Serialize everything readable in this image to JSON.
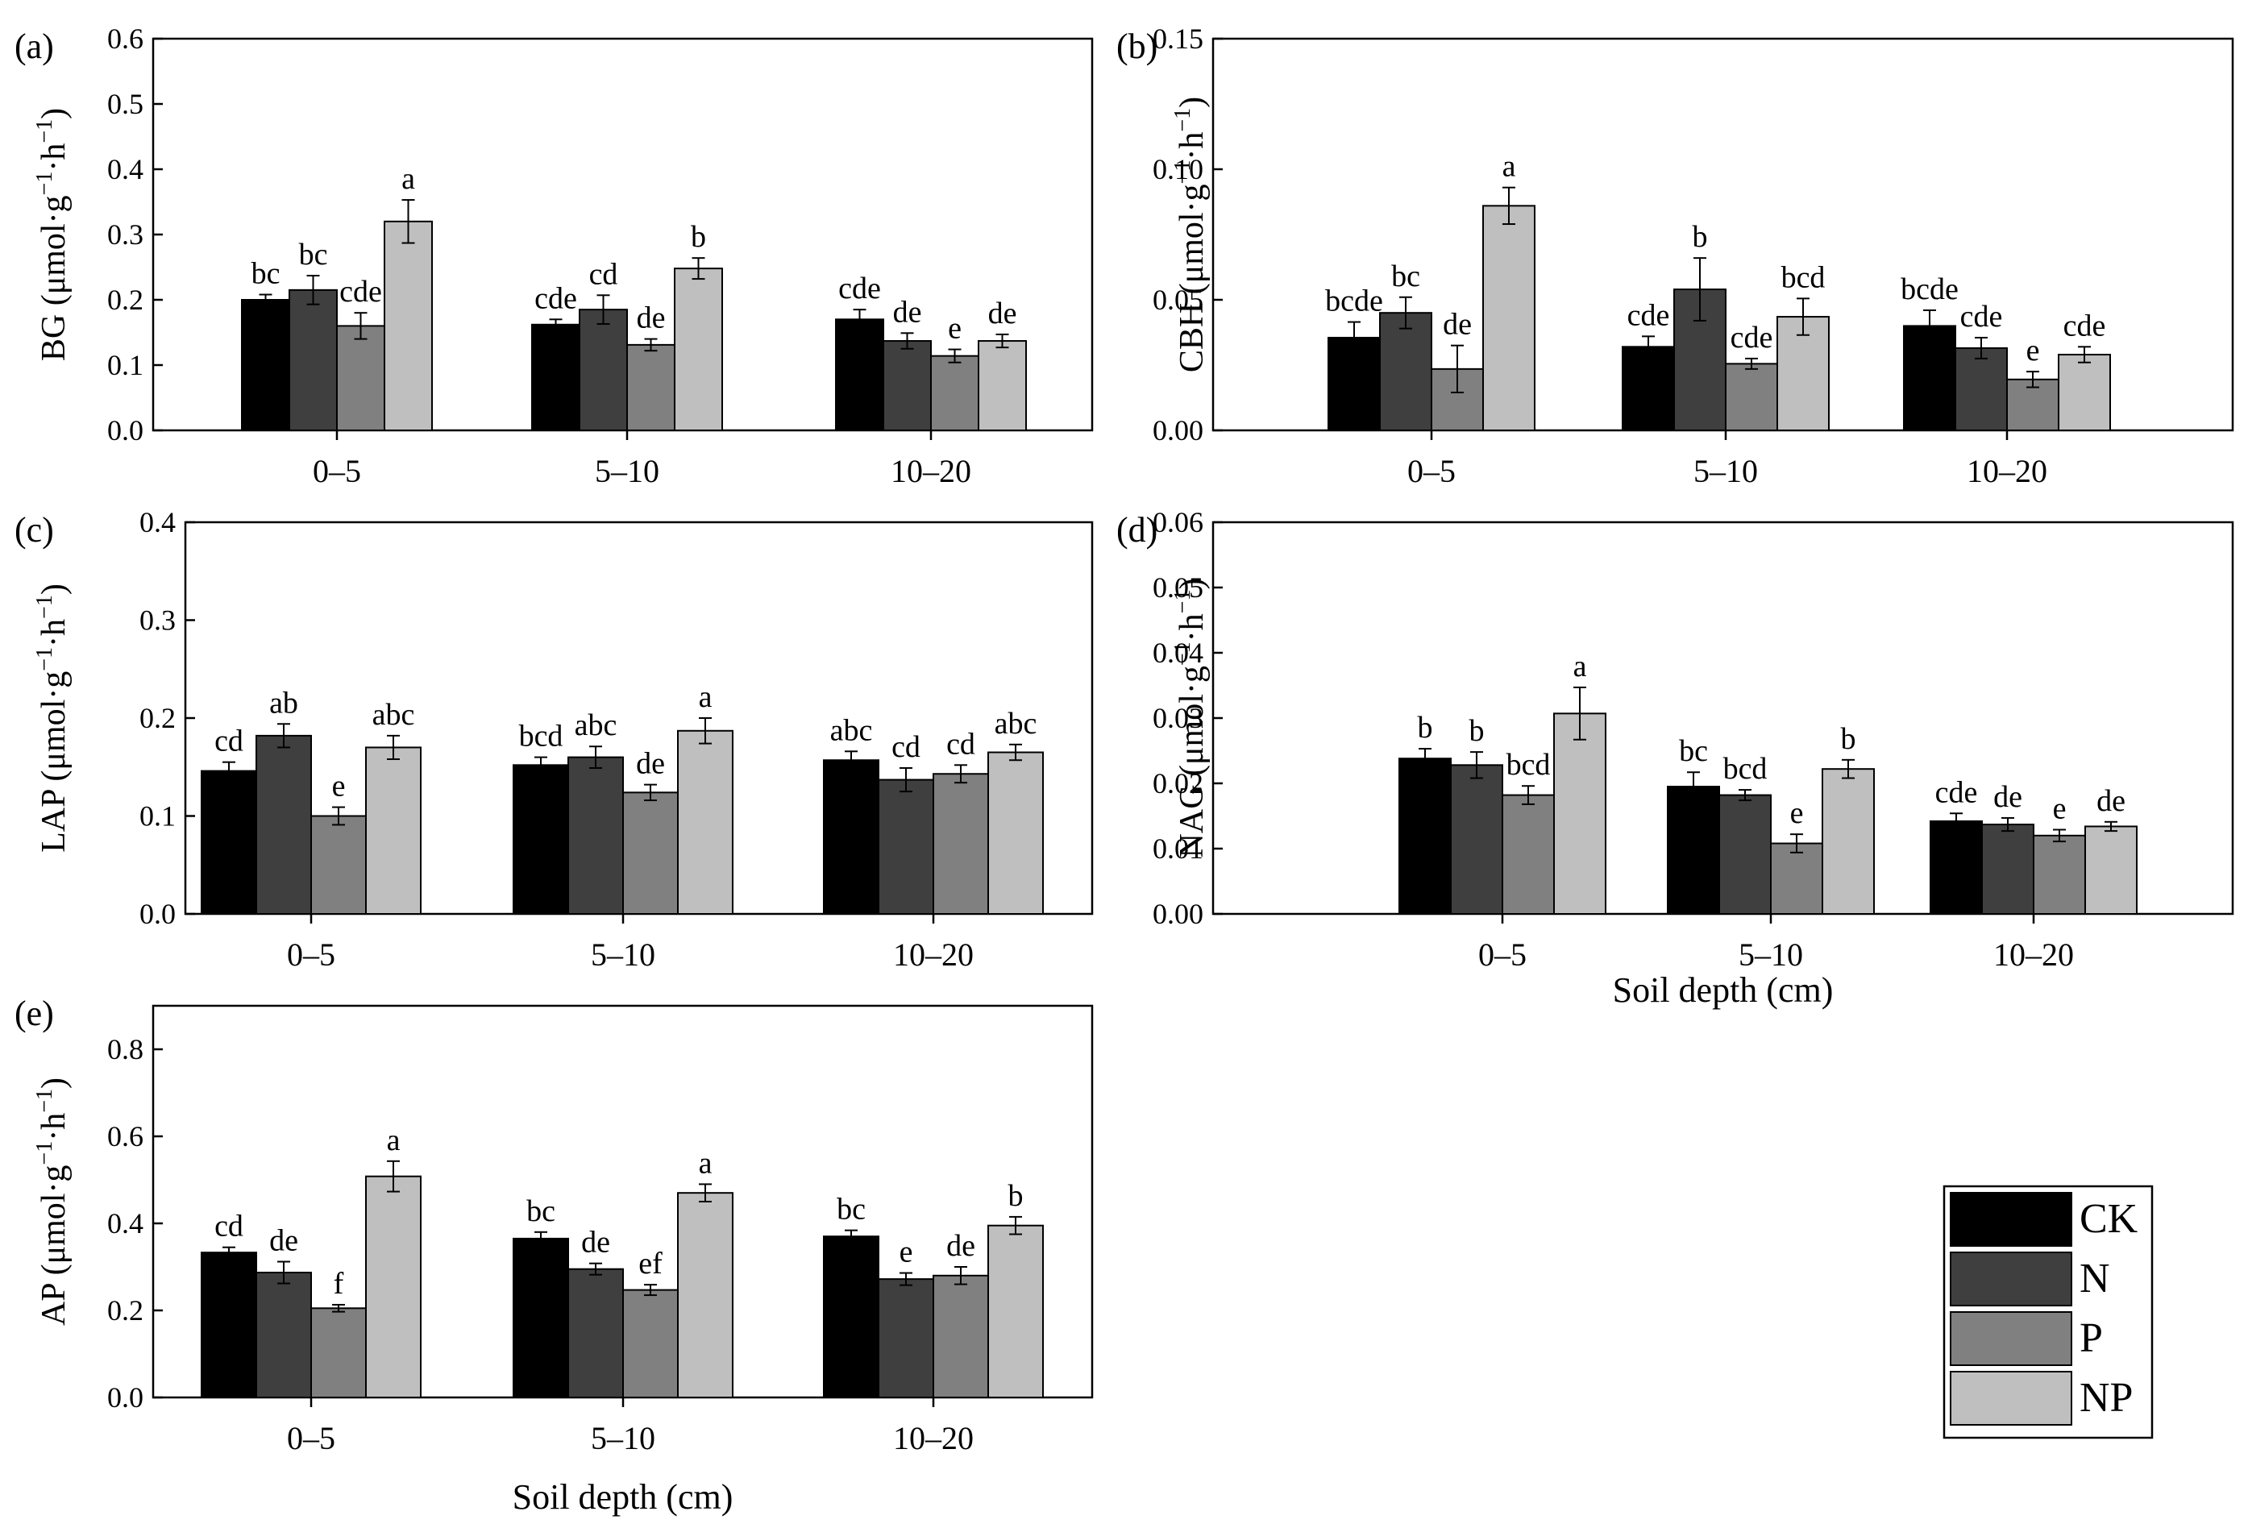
{
  "series_names": [
    "CK",
    "N",
    "P",
    "NP"
  ],
  "series_colors": [
    "#000000",
    "#3f3f3f",
    "#808080",
    "#bfbfbf"
  ],
  "legend": {
    "items": [
      "CK",
      "N",
      "P",
      "NP"
    ]
  },
  "chart_data": [
    {
      "type": "bar",
      "panel": "(a)",
      "ylabel_main": "BG (μmol·g",
      "ylabel_sep": "·h",
      "ylabel_unit_close": ")",
      "ylabel_exp": "−1",
      "xlabel": "",
      "categories": [
        "0–5",
        "5–10",
        "10–20"
      ],
      "ylim": [
        0,
        0.6
      ],
      "yticks": [
        0.0,
        0.1,
        0.2,
        0.3,
        0.4,
        0.5,
        0.6
      ],
      "ytick_labels": [
        "0.0",
        "0.1",
        "0.2",
        "0.3",
        "0.4",
        "0.5",
        "0.6"
      ],
      "series": [
        {
          "name": "CK",
          "values": [
            0.2,
            0.162,
            0.17
          ],
          "errors": [
            0.008,
            0.008,
            0.015
          ],
          "letters": [
            "bc",
            "cde",
            "cde"
          ]
        },
        {
          "name": "N",
          "values": [
            0.215,
            0.185,
            0.137
          ],
          "errors": [
            0.022,
            0.022,
            0.012
          ],
          "letters": [
            "bc",
            "cd",
            "de"
          ]
        },
        {
          "name": "P",
          "values": [
            0.16,
            0.131,
            0.114
          ],
          "errors": [
            0.02,
            0.009,
            0.01
          ],
          "letters": [
            "cde",
            "de",
            "e"
          ]
        },
        {
          "name": "NP",
          "values": [
            0.32,
            0.248,
            0.137
          ],
          "errors": [
            0.033,
            0.016,
            0.01
          ],
          "letters": [
            "a",
            "b",
            "de"
          ]
        }
      ]
    },
    {
      "type": "bar",
      "panel": "(b)",
      "ylabel_main": "CBH (μmol·g",
      "ylabel_sep": "·h",
      "ylabel_unit_close": ")",
      "ylabel_exp": "−1",
      "xlabel": "",
      "categories": [
        "0–5",
        "5–10",
        "10–20"
      ],
      "ylim": [
        0,
        0.15
      ],
      "yticks": [
        0.0,
        0.05,
        0.1,
        0.15
      ],
      "ytick_labels": [
        "0.00",
        "0.05",
        "0.10",
        "0.15"
      ],
      "series": [
        {
          "name": "CK",
          "values": [
            0.0355,
            0.032,
            0.04
          ],
          "errors": [
            0.006,
            0.004,
            0.006
          ],
          "letters": [
            "bcde",
            "cde",
            "bcde"
          ]
        },
        {
          "name": "N",
          "values": [
            0.045,
            0.054,
            0.0315
          ],
          "errors": [
            0.006,
            0.012,
            0.004
          ],
          "letters": [
            "bc",
            "b",
            "cde"
          ]
        },
        {
          "name": "P",
          "values": [
            0.0235,
            0.0255,
            0.0195
          ],
          "errors": [
            0.009,
            0.002,
            0.003
          ],
          "letters": [
            "de",
            "cde",
            "e"
          ]
        },
        {
          "name": "NP",
          "values": [
            0.086,
            0.0435,
            0.029
          ],
          "errors": [
            0.007,
            0.007,
            0.003
          ],
          "letters": [
            "a",
            "bcd",
            "cde"
          ]
        }
      ]
    },
    {
      "type": "bar",
      "panel": "(c)",
      "ylabel_main": "LAP (μmol·g",
      "ylabel_sep": "·h",
      "ylabel_unit_close": ")",
      "ylabel_exp": "−1",
      "xlabel": "",
      "categories": [
        "0–5",
        "5–10",
        "10–20"
      ],
      "ylim": [
        0,
        0.4
      ],
      "yticks": [
        0.0,
        0.1,
        0.2,
        0.3,
        0.4
      ],
      "ytick_labels": [
        "0.0",
        "0.1",
        "0.2",
        "0.3",
        "0.4"
      ],
      "series": [
        {
          "name": "CK",
          "values": [
            0.146,
            0.152,
            0.157
          ],
          "errors": [
            0.009,
            0.008,
            0.009
          ],
          "letters": [
            "cd",
            "bcd",
            "abc"
          ]
        },
        {
          "name": "N",
          "values": [
            0.182,
            0.16,
            0.137
          ],
          "errors": [
            0.012,
            0.011,
            0.012
          ],
          "letters": [
            "ab",
            "abc",
            "cd"
          ]
        },
        {
          "name": "P",
          "values": [
            0.1,
            0.124,
            0.143
          ],
          "errors": [
            0.009,
            0.008,
            0.009
          ],
          "letters": [
            "e",
            "de",
            "cd"
          ]
        },
        {
          "name": "NP",
          "values": [
            0.17,
            0.187,
            0.165
          ],
          "errors": [
            0.012,
            0.013,
            0.008
          ],
          "letters": [
            "abc",
            "a",
            "abc"
          ]
        }
      ]
    },
    {
      "type": "bar",
      "panel": "(d)",
      "ylabel_main": "NAG (μmol·g",
      "ylabel_sep": "·h",
      "ylabel_unit_close": ")",
      "ylabel_exp": "−1",
      "xlabel": "Soil depth (cm)",
      "categories": [
        "0–5",
        "5–10",
        "10–20"
      ],
      "ylim": [
        0,
        0.06
      ],
      "yticks": [
        0.0,
        0.01,
        0.02,
        0.03,
        0.04,
        0.05,
        0.06
      ],
      "ytick_labels": [
        "0.00",
        "0.01",
        "0.02",
        "0.03",
        "0.04",
        "0.05",
        "0.06"
      ],
      "series": [
        {
          "name": "CK",
          "values": [
            0.0238,
            0.0195,
            0.0142
          ],
          "errors": [
            0.0015,
            0.0022,
            0.0012
          ],
          "letters": [
            "b",
            "bc",
            "cde"
          ]
        },
        {
          "name": "N",
          "values": [
            0.0228,
            0.0182,
            0.0137
          ],
          "errors": [
            0.002,
            0.0008,
            0.001
          ],
          "letters": [
            "b",
            "bcd",
            "de"
          ]
        },
        {
          "name": "P",
          "values": [
            0.0182,
            0.0108,
            0.012
          ],
          "errors": [
            0.0014,
            0.0014,
            0.0009
          ],
          "letters": [
            "bcd",
            "e",
            "e"
          ]
        },
        {
          "name": "NP",
          "values": [
            0.0307,
            0.0222,
            0.0134
          ],
          "errors": [
            0.004,
            0.0014,
            0.0007
          ],
          "letters": [
            "a",
            "b",
            "de"
          ]
        }
      ]
    },
    {
      "type": "bar",
      "panel": "(e)",
      "ylabel_main": "AP (μmol·g",
      "ylabel_sep": "·h",
      "ylabel_unit_close": ")",
      "ylabel_exp": "−1",
      "xlabel": "Soil depth (cm)",
      "categories": [
        "0–5",
        "5–10",
        "10–20"
      ],
      "ylim": [
        0,
        0.9
      ],
      "yticks": [
        0.0,
        0.2,
        0.4,
        0.6,
        0.8
      ],
      "ytick_labels": [
        "0.0",
        "0.2",
        "0.4",
        "0.6",
        "0.8"
      ],
      "series": [
        {
          "name": "CK",
          "values": [
            0.333,
            0.365,
            0.37
          ],
          "errors": [
            0.012,
            0.015,
            0.014
          ],
          "letters": [
            "cd",
            "bc",
            "bc"
          ]
        },
        {
          "name": "N",
          "values": [
            0.287,
            0.295,
            0.272
          ],
          "errors": [
            0.025,
            0.013,
            0.014
          ],
          "letters": [
            "de",
            "de",
            "e"
          ]
        },
        {
          "name": "P",
          "values": [
            0.205,
            0.247,
            0.28
          ],
          "errors": [
            0.008,
            0.012,
            0.02
          ],
          "letters": [
            "f",
            "ef",
            "de"
          ]
        },
        {
          "name": "NP",
          "values": [
            0.508,
            0.47,
            0.395
          ],
          "errors": [
            0.035,
            0.02,
            0.02
          ],
          "letters": [
            "a",
            "a",
            "b"
          ]
        }
      ]
    }
  ]
}
